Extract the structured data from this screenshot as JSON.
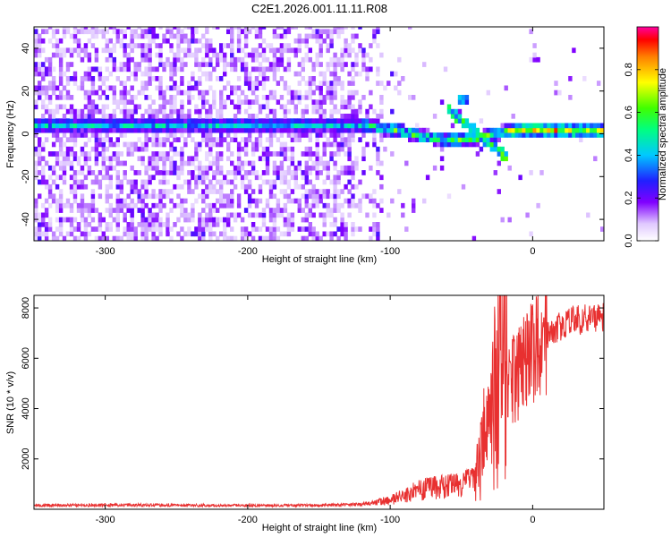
{
  "title": "C2E1.2026.001.11.11.R08",
  "chart_data": [
    {
      "type": "heatmap",
      "name": "spectrogram",
      "xlabel": "Height of straight line (km)",
      "ylabel": "Frequency (Hz)",
      "xlim": [
        -350,
        50
      ],
      "ylim": [
        -50,
        50
      ],
      "xticks": [
        -300,
        -200,
        -100,
        0
      ],
      "yticks": [
        -40,
        -20,
        0,
        20,
        40
      ],
      "colorbar": {
        "label": "Normalized spectral amplitude",
        "range": [
          0,
          1
        ],
        "ticks": [
          0.0,
          0.2,
          0.4,
          0.6,
          0.8
        ]
      },
      "ridge": {
        "description_points_x": [
          -350,
          -120,
          -100,
          -80,
          -60,
          -40,
          -20,
          0,
          50
        ],
        "description_points_y": [
          3,
          3,
          1,
          -2,
          -4,
          -3,
          0,
          1,
          0
        ]
      }
    },
    {
      "type": "line",
      "name": "snr",
      "xlabel": "Height of straight line (km)",
      "ylabel": "SNR (10 * v/v)",
      "xlim": [
        -350,
        50
      ],
      "ylim": [
        0,
        8500
      ],
      "xticks": [
        -300,
        -200,
        -100,
        0
      ],
      "yticks": [
        2000,
        4000,
        6000,
        8000
      ],
      "series": [
        {
          "name": "SNR",
          "color": "#e83030",
          "x": [
            -350,
            -300,
            -250,
            -200,
            -150,
            -120,
            -100,
            -90,
            -80,
            -70,
            -60,
            -50,
            -40,
            -35,
            -30,
            -25,
            -22,
            -20,
            -15,
            -10,
            -5,
            0,
            10,
            20,
            30,
            40,
            50
          ],
          "y": [
            150,
            170,
            160,
            150,
            155,
            200,
            350,
            550,
            800,
            850,
            900,
            950,
            1200,
            2500,
            3500,
            5000,
            6000,
            4500,
            5000,
            5400,
            5800,
            6300,
            6900,
            7300,
            7500,
            7600,
            7650
          ]
        }
      ]
    }
  ]
}
